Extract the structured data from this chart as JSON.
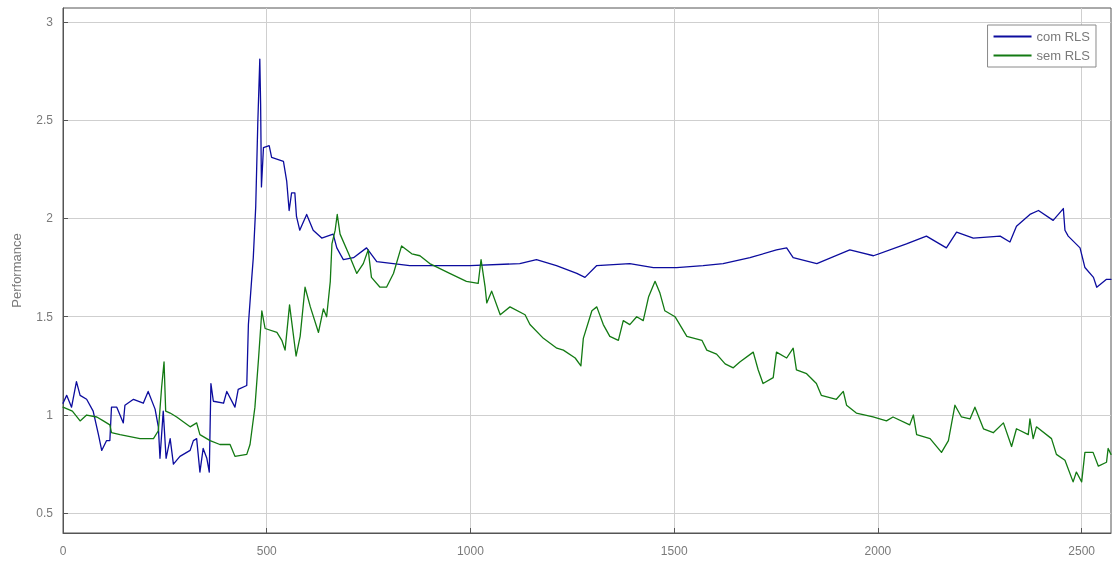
{
  "chart_data": {
    "type": "line",
    "ylabel": "Performance",
    "xlim": [
      0,
      2572
    ],
    "ylim": [
      0.4,
      3.07
    ],
    "xticks": [
      0,
      500,
      1000,
      1500,
      2000,
      2500
    ],
    "yticks": [
      0.5,
      1,
      1.5,
      2,
      2.5,
      3
    ],
    "grid": true,
    "legend": "top right",
    "line_style": "solid",
    "series": [
      {
        "name": "com RLS",
        "color": "#0c0c9e",
        "x": [
          0,
          9,
          21,
          33,
          42,
          58,
          74,
          87,
          95,
          107,
          115,
          119,
          132,
          148,
          152,
          173,
          197,
          209,
          226,
          234,
          238,
          246,
          253,
          263,
          271,
          287,
          312,
          320,
          328,
          336,
          344,
          353,
          359,
          363,
          369,
          394,
          402,
          422,
          430,
          451,
          455,
          463,
          467,
          473,
          478,
          483,
          485,
          487,
          492,
          506,
          512,
          541,
          549,
          555,
          561,
          569,
          573,
          581,
          598,
          614,
          635,
          663,
          672,
          688,
          713,
          745,
          770,
          851,
          999,
          1121,
          1162,
          1211,
          1261,
          1281,
          1310,
          1391,
          1449,
          1506,
          1571,
          1620,
          1686,
          1751,
          1776,
          1792,
          1850,
          1931,
          1989,
          2070,
          2119,
          2168,
          2193,
          2234,
          2300,
          2324,
          2340,
          2373,
          2394,
          2430,
          2455,
          2459,
          2467,
          2496,
          2508,
          2529,
          2537,
          2561,
          2572
        ],
        "values": [
          1.06,
          1.1,
          1.04,
          1.17,
          1.1,
          1.08,
          1.02,
          0.9,
          0.82,
          0.87,
          0.87,
          1.04,
          1.04,
          0.96,
          1.05,
          1.08,
          1.06,
          1.12,
          1.03,
          0.94,
          0.78,
          1.02,
          0.78,
          0.88,
          0.75,
          0.79,
          0.82,
          0.87,
          0.88,
          0.71,
          0.83,
          0.78,
          0.71,
          1.16,
          1.07,
          1.06,
          1.12,
          1.04,
          1.13,
          1.15,
          1.46,
          1.69,
          1.8,
          2.06,
          2.48,
          2.81,
          2.58,
          2.16,
          2.36,
          2.37,
          2.31,
          2.29,
          2.19,
          2.04,
          2.13,
          2.13,
          2.01,
          1.94,
          2.02,
          1.94,
          1.9,
          1.92,
          1.85,
          1.79,
          1.8,
          1.85,
          1.78,
          1.76,
          1.76,
          1.77,
          1.79,
          1.76,
          1.72,
          1.7,
          1.76,
          1.77,
          1.75,
          1.75,
          1.76,
          1.77,
          1.8,
          1.84,
          1.85,
          1.8,
          1.77,
          1.84,
          1.81,
          1.87,
          1.91,
          1.85,
          1.93,
          1.9,
          1.91,
          1.88,
          1.96,
          2.02,
          2.04,
          1.99,
          2.05,
          1.94,
          1.91,
          1.85,
          1.75,
          1.7,
          1.65,
          1.69,
          1.69
        ]
      },
      {
        "name": "sem RLS",
        "color": "#137a13",
        "x": [
          0,
          23,
          42,
          58,
          83,
          99,
          115,
          119,
          140,
          189,
          222,
          234,
          242,
          248,
          252,
          263,
          279,
          312,
          328,
          336,
          361,
          385,
          410,
          422,
          451,
          459,
          471,
          480,
          488,
          496,
          525,
          537,
          545,
          556,
          572,
          582,
          594,
          607,
          627,
          639,
          647,
          656,
          660,
          668,
          673,
          680,
          701,
          721,
          737,
          749,
          757,
          778,
          794,
          811,
          831,
          856,
          876,
          900,
          949,
          990,
          1019,
          1026,
          1036,
          1040,
          1052,
          1073,
          1097,
          1134,
          1146,
          1179,
          1212,
          1228,
          1257,
          1271,
          1277,
          1298,
          1310,
          1326,
          1342,
          1363,
          1375,
          1391,
          1408,
          1424,
          1437,
          1453,
          1465,
          1477,
          1502,
          1531,
          1568,
          1580,
          1604,
          1625,
          1645,
          1661,
          1694,
          1706,
          1718,
          1743,
          1751,
          1776,
          1792,
          1800,
          1825,
          1849,
          1861,
          1898,
          1915,
          1923,
          1947,
          1988,
          2021,
          2037,
          2078,
          2087,
          2095,
          2128,
          2156,
          2173,
          2189,
          2205,
          2226,
          2238,
          2259,
          2283,
          2308,
          2328,
          2340,
          2369,
          2373,
          2381,
          2389,
          2426,
          2438,
          2459,
          2479,
          2487,
          2500,
          2508,
          2528,
          2541,
          2561,
          2565,
          2572
        ],
        "values": [
          1.04,
          1.02,
          0.97,
          1.0,
          0.99,
          0.97,
          0.95,
          0.91,
          0.9,
          0.88,
          0.88,
          0.92,
          1.14,
          1.27,
          1.02,
          1.01,
          0.99,
          0.94,
          0.96,
          0.9,
          0.87,
          0.85,
          0.85,
          0.79,
          0.8,
          0.85,
          1.04,
          1.29,
          1.53,
          1.44,
          1.42,
          1.38,
          1.33,
          1.56,
          1.3,
          1.4,
          1.65,
          1.55,
          1.42,
          1.54,
          1.5,
          1.68,
          1.87,
          1.94,
          2.02,
          1.92,
          1.82,
          1.72,
          1.77,
          1.84,
          1.7,
          1.65,
          1.65,
          1.72,
          1.86,
          1.82,
          1.81,
          1.77,
          1.72,
          1.68,
          1.67,
          1.79,
          1.65,
          1.57,
          1.63,
          1.51,
          1.55,
          1.51,
          1.46,
          1.39,
          1.34,
          1.33,
          1.29,
          1.25,
          1.39,
          1.53,
          1.55,
          1.46,
          1.4,
          1.38,
          1.48,
          1.46,
          1.5,
          1.48,
          1.6,
          1.68,
          1.62,
          1.53,
          1.5,
          1.4,
          1.38,
          1.33,
          1.31,
          1.26,
          1.24,
          1.27,
          1.32,
          1.23,
          1.16,
          1.19,
          1.32,
          1.29,
          1.34,
          1.23,
          1.21,
          1.16,
          1.1,
          1.08,
          1.12,
          1.05,
          1.01,
          0.99,
          0.97,
          0.99,
          0.95,
          1.0,
          0.9,
          0.88,
          0.81,
          0.87,
          1.05,
          0.99,
          0.98,
          1.04,
          0.93,
          0.91,
          0.96,
          0.84,
          0.93,
          0.9,
          0.98,
          0.88,
          0.94,
          0.88,
          0.8,
          0.77,
          0.66,
          0.71,
          0.66,
          0.81,
          0.81,
          0.74,
          0.76,
          0.83,
          0.8
        ]
      }
    ]
  }
}
